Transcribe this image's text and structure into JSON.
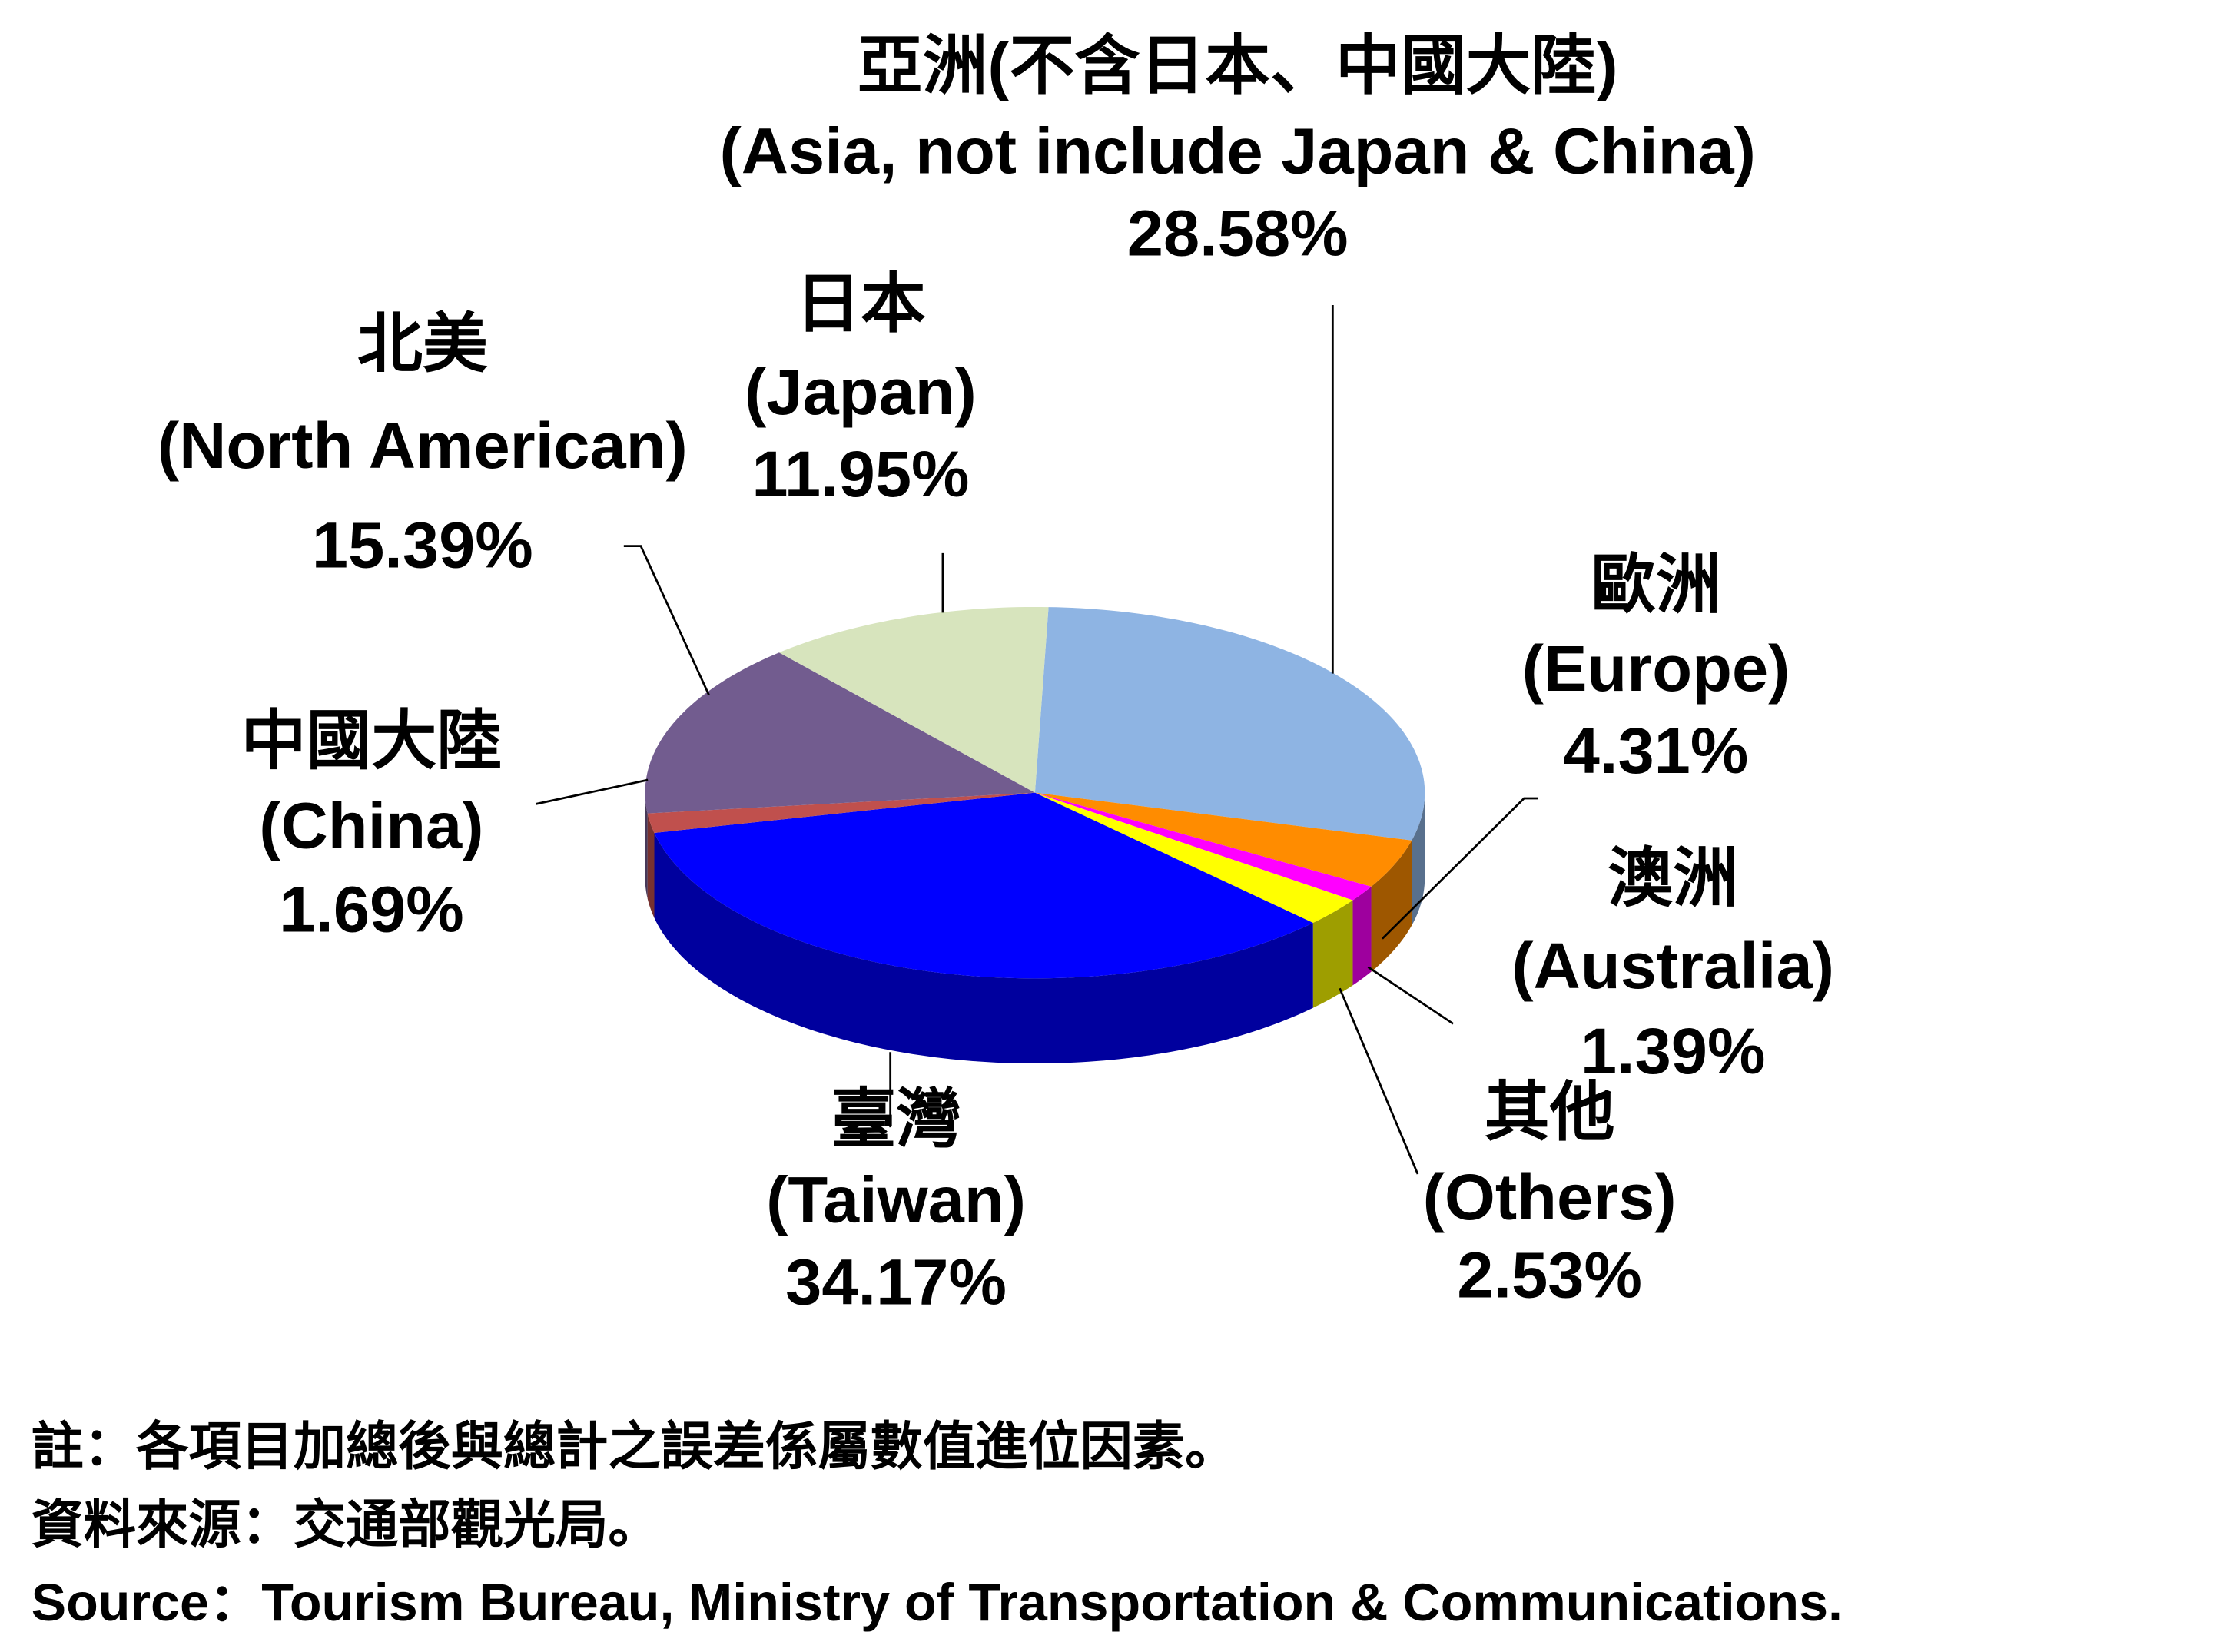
{
  "chart_data": {
    "type": "pie3d",
    "categories": [
      "亞洲(不含日本、中國大陸)",
      "歐洲",
      "澳洲",
      "其他",
      "臺灣",
      "中國大陸",
      "北美",
      "日本"
    ],
    "categories_en": [
      "(Asia, not include Japan & China)",
      "(Europe)",
      "(Australia)",
      "(Others)",
      "(Taiwan)",
      "(China)",
      "(North American)",
      "(Japan)"
    ],
    "values": [
      28.58,
      4.31,
      1.39,
      2.53,
      34.17,
      1.69,
      15.39,
      11.95
    ],
    "value_labels": [
      "28.58%",
      "4.31%",
      "1.39%",
      "2.53%",
      "34.17%",
      "1.69%",
      "15.39%",
      "11.95%"
    ],
    "colors": [
      "#8eb4e3",
      "#ff8c00",
      "#ff00ff",
      "#ffff00",
      "#0000ff",
      "#c0504d",
      "#725c8f",
      "#d7e4bd"
    ]
  },
  "notes": [
    "註：各項目加總後與總計之誤差係屬數值進位因素。",
    "資料來源：交通部觀光局。",
    "Source：Tourism Bureau, Ministry of Transportation & Communications."
  ]
}
